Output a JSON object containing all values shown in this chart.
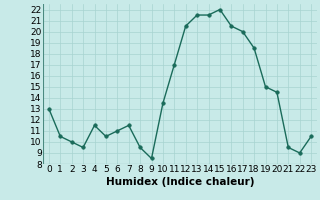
{
  "x": [
    0,
    1,
    2,
    3,
    4,
    5,
    6,
    7,
    8,
    9,
    10,
    11,
    12,
    13,
    14,
    15,
    16,
    17,
    18,
    19,
    20,
    21,
    22,
    23
  ],
  "y": [
    13,
    10.5,
    10,
    9.5,
    11.5,
    10.5,
    11,
    11.5,
    9.5,
    8.5,
    13.5,
    17,
    20.5,
    21.5,
    21.5,
    22,
    20.5,
    20,
    18.5,
    15,
    14.5,
    9.5,
    9,
    10.5
  ],
  "line_color": "#1a6b5a",
  "marker_color": "#1a6b5a",
  "bg_color": "#c8eae8",
  "grid_color": "#a8d4d0",
  "xlabel": "Humidex (Indice chaleur)",
  "xlim": [
    -0.5,
    23.5
  ],
  "ylim": [
    8,
    22.5
  ],
  "yticks": [
    8,
    9,
    10,
    11,
    12,
    13,
    14,
    15,
    16,
    17,
    18,
    19,
    20,
    21,
    22
  ],
  "xticks": [
    0,
    1,
    2,
    3,
    4,
    5,
    6,
    7,
    8,
    9,
    10,
    11,
    12,
    13,
    14,
    15,
    16,
    17,
    18,
    19,
    20,
    21,
    22,
    23
  ],
  "xtick_labels": [
    "0",
    "1",
    "2",
    "3",
    "4",
    "5",
    "6",
    "7",
    "8",
    "9",
    "10",
    "11",
    "12",
    "13",
    "14",
    "15",
    "16",
    "17",
    "18",
    "19",
    "20",
    "21",
    "22",
    "23"
  ],
  "ytick_labels": [
    "8",
    "9",
    "10",
    "11",
    "12",
    "13",
    "14",
    "15",
    "16",
    "17",
    "18",
    "19",
    "20",
    "21",
    "22"
  ],
  "font_size": 6.5,
  "xlabel_fontsize": 7.5,
  "linewidth": 1.0,
  "markersize": 2.5
}
